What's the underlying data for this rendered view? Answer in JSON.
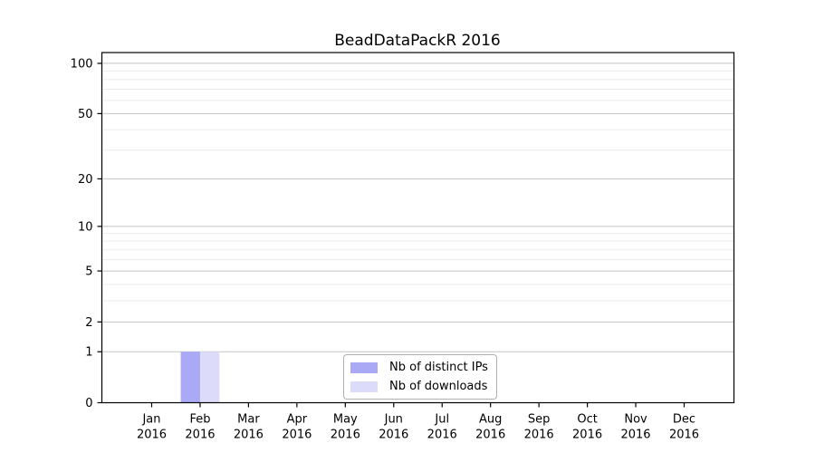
{
  "title": "BeadDataPackR 2016",
  "legend": {
    "items": [
      {
        "label": "Nb of distinct IPs",
        "color": "#a9a9f6"
      },
      {
        "label": "Nb of downloads",
        "color": "#dcdcfa"
      }
    ]
  },
  "chart_data": {
    "type": "bar",
    "title": "BeadDataPackR 2016",
    "year": "2016",
    "months": [
      "Jan",
      "Feb",
      "Mar",
      "Apr",
      "May",
      "Jun",
      "Jul",
      "Aug",
      "Sep",
      "Oct",
      "Nov",
      "Dec"
    ],
    "categories": [
      "Jan 2016",
      "Feb 2016",
      "Mar 2016",
      "Apr 2016",
      "May 2016",
      "Jun 2016",
      "Jul 2016",
      "Aug 2016",
      "Sep 2016",
      "Oct 2016",
      "Nov 2016",
      "Dec 2016"
    ],
    "series": [
      {
        "name": "Nb of distinct IPs",
        "color": "#a9a9f6",
        "values": [
          0,
          1,
          0,
          0,
          0,
          0,
          0,
          0,
          0,
          0,
          0,
          0
        ]
      },
      {
        "name": "Nb of downloads",
        "color": "#dcdcfa",
        "values": [
          0,
          1,
          0,
          0,
          0,
          0,
          0,
          0,
          0,
          0,
          0,
          0
        ]
      }
    ],
    "xlabel": "",
    "ylabel": "",
    "yscale": "log1p",
    "ylim": [
      0,
      116
    ],
    "yticks": [
      0,
      1,
      2,
      5,
      10,
      20,
      50,
      100
    ],
    "minor_yticks": [
      3,
      4,
      6,
      7,
      8,
      9,
      30,
      40,
      60,
      70,
      80,
      90
    ],
    "grid": "horizontal",
    "legend_position": "lower-center-inside"
  },
  "colors": {
    "grid_major": "#c4c4c4",
    "grid_minor": "#ebebeb",
    "axis": "#000000",
    "background": "#ffffff"
  }
}
